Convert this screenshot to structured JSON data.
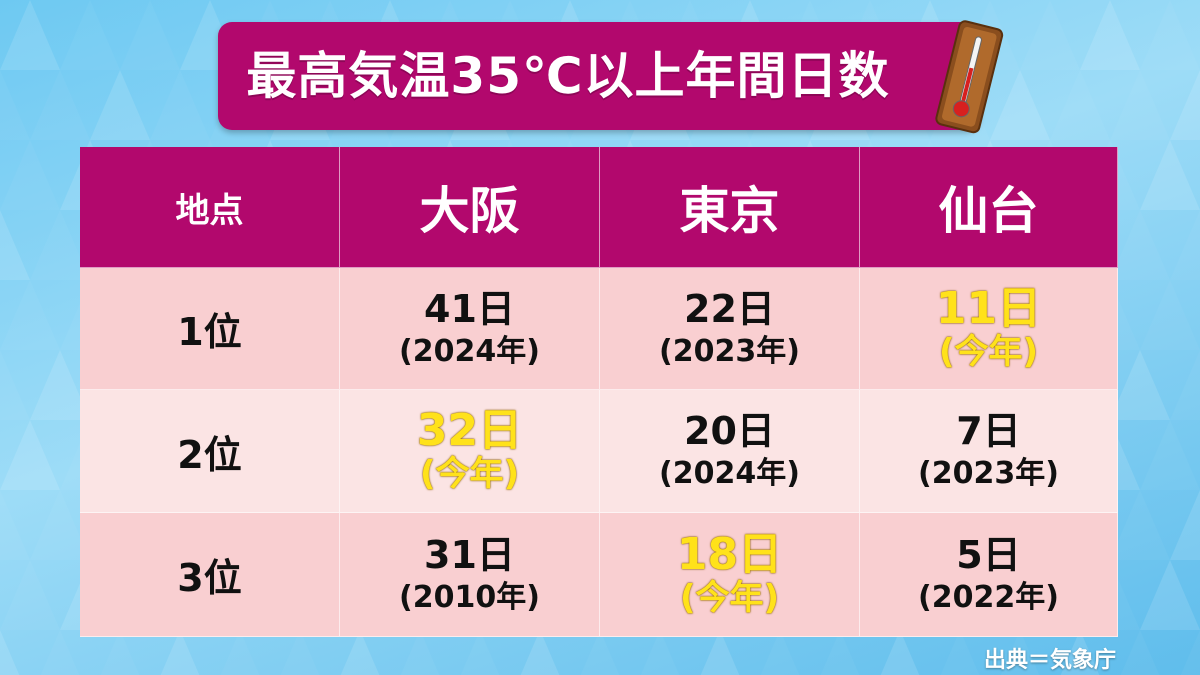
{
  "title": "最高気温35℃以上年間日数",
  "table": {
    "header": [
      "地点",
      "大阪",
      "東京",
      "仙台"
    ],
    "rows": [
      {
        "label": "1位",
        "cells": [
          {
            "days": "41日",
            "year": "(2024年)",
            "color": "#111111"
          },
          {
            "days": "22日",
            "year": "(2023年)",
            "color": "#111111"
          },
          {
            "days": "11日",
            "year": "(今年)",
            "color": "#ffe21a"
          }
        ]
      },
      {
        "label": "2位",
        "cells": [
          {
            "days": "32日",
            "year": "(今年)",
            "color": "#ffe21a"
          },
          {
            "days": "20日",
            "year": "(2024年)",
            "color": "#111111"
          },
          {
            "days": "7日",
            "year": "(2023年)",
            "color": "#111111"
          }
        ]
      },
      {
        "label": "3位",
        "cells": [
          {
            "days": "31日",
            "year": "(2010年)",
            "color": "#111111"
          },
          {
            "days": "18日",
            "year": "(今年)",
            "color": "#ffe21a"
          },
          {
            "days": "5日",
            "year": "(2022年)",
            "color": "#111111"
          }
        ]
      }
    ]
  },
  "source": "出典＝気象庁"
}
